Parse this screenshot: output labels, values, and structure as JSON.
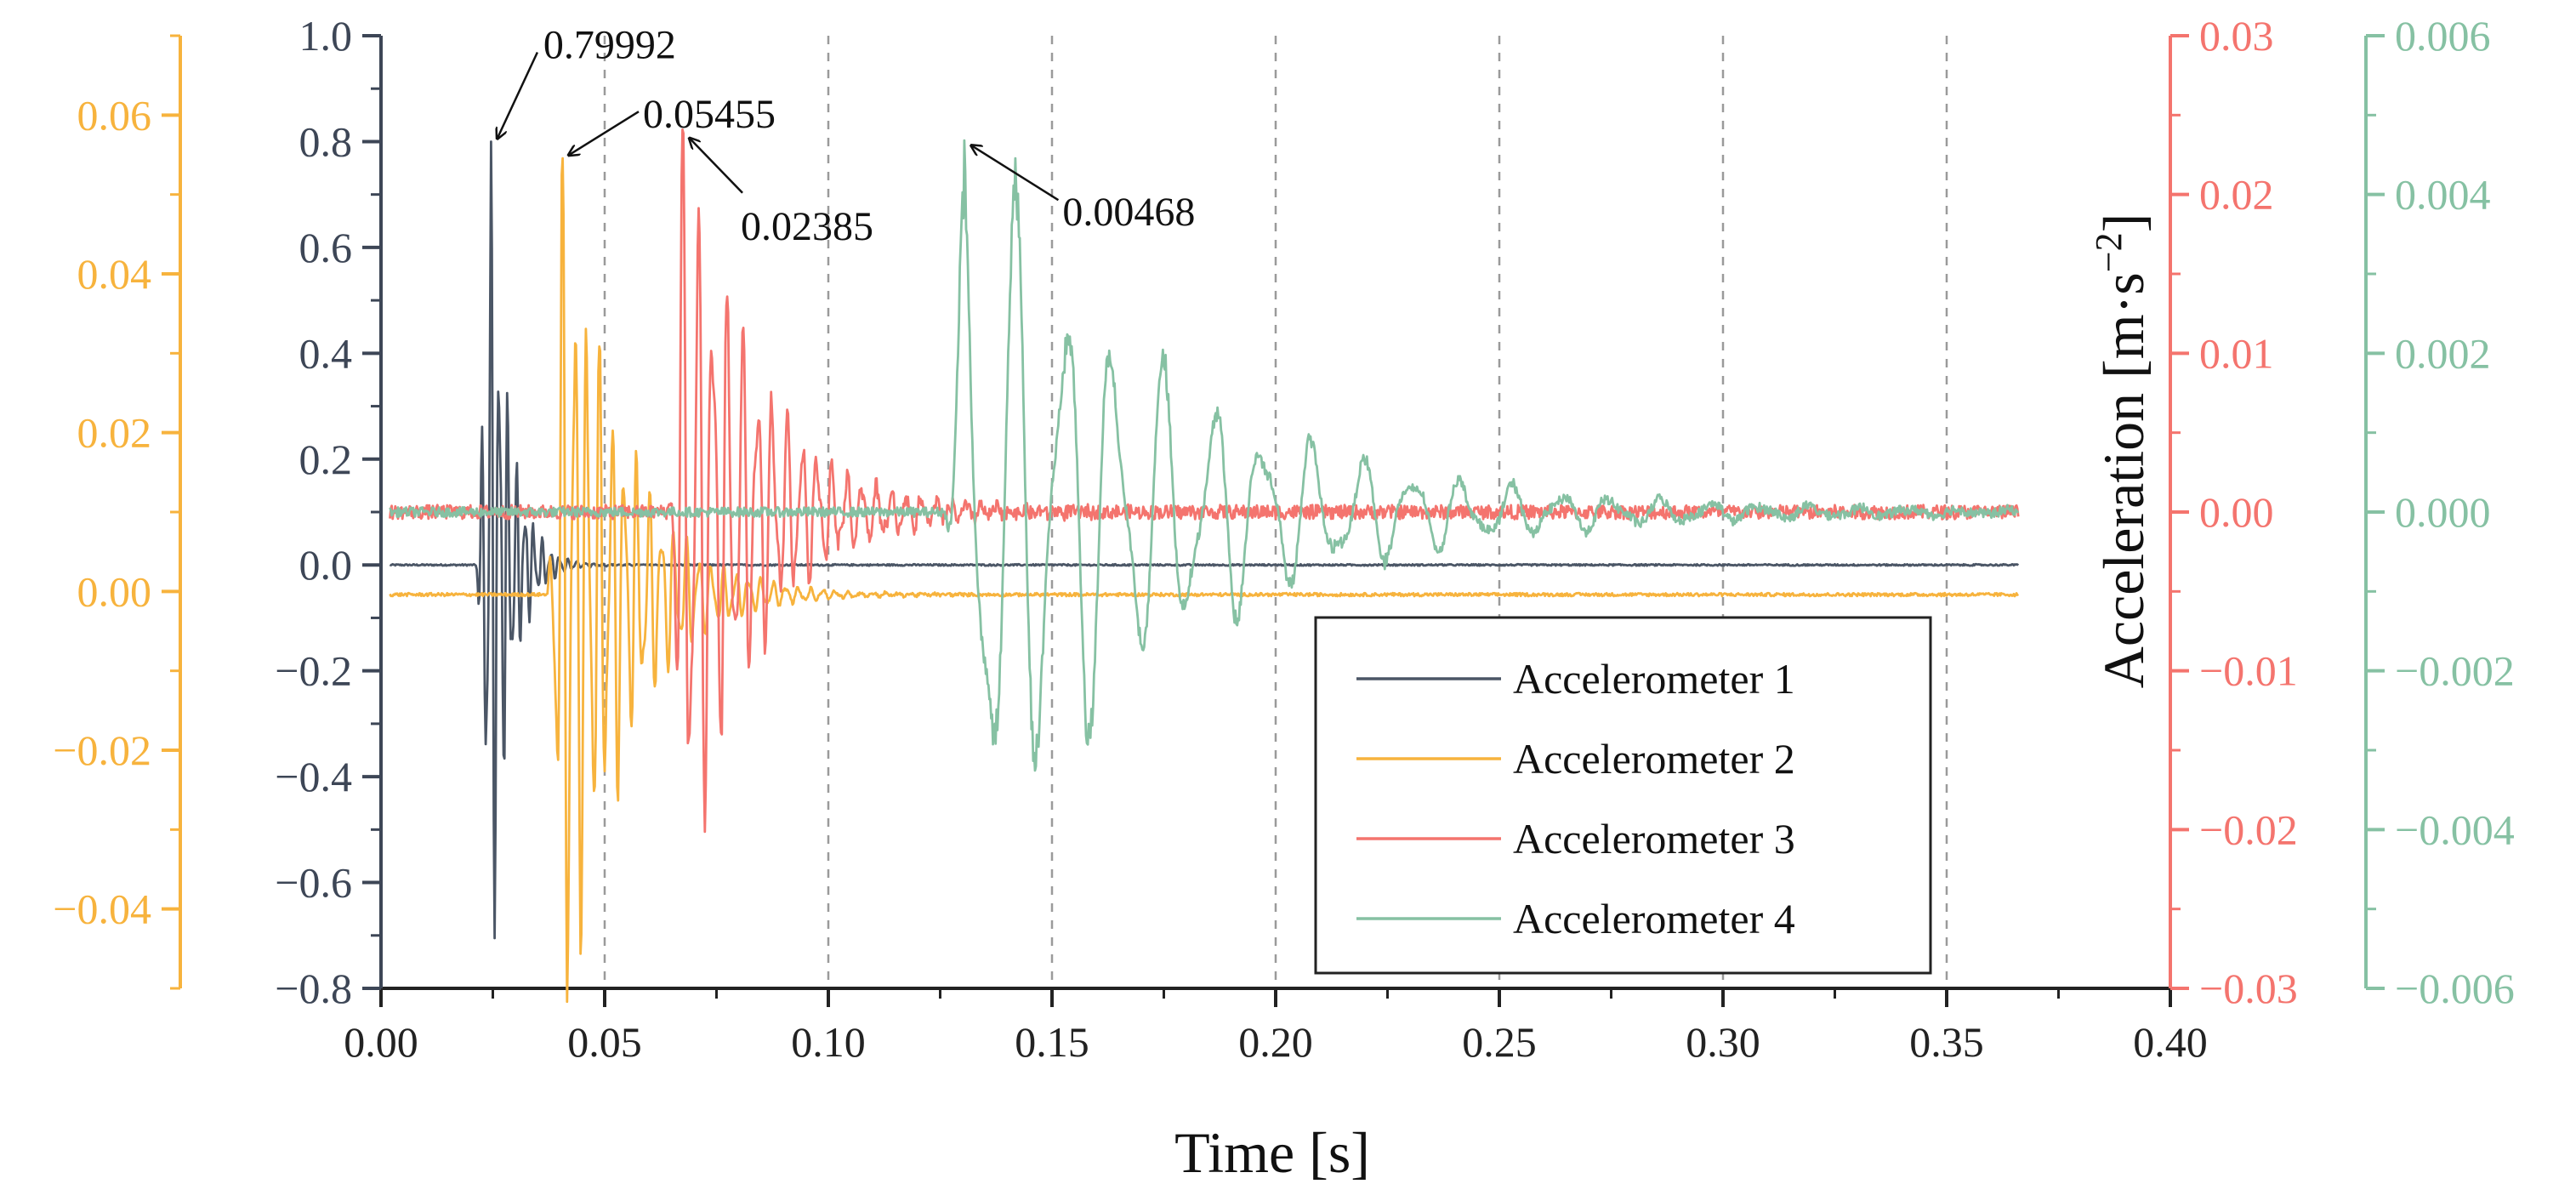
{
  "chart_data": {
    "type": "line",
    "title": "",
    "xlabel": "Time [s]",
    "ylabel_right": "Acceleration [m·s−2]",
    "xlim": [
      0,
      0.4
    ],
    "x_ticks": [
      "0.00",
      "0.05",
      "0.10",
      "0.15",
      "0.20",
      "0.25",
      "0.30",
      "0.35",
      "0.40"
    ],
    "axes": [
      {
        "id": "a1",
        "color": "#4b5666",
        "ylim": [
          -0.8,
          1.0
        ],
        "ticks": [
          "−0.8",
          "−0.6",
          "−0.4",
          "−0.2",
          "0.0",
          "0.2",
          "0.4",
          "0.6",
          "0.8",
          "1.0"
        ],
        "tick_values": [
          -0.8,
          -0.6,
          -0.4,
          -0.2,
          0,
          0.2,
          0.4,
          0.6,
          0.8,
          1.0
        ]
      },
      {
        "id": "a2",
        "color": "#f7b33d",
        "ylim": [
          -0.05,
          0.07
        ],
        "ticks": [
          "−0.04",
          "−0.02",
          "0.00",
          "0.02",
          "0.04",
          "0.06"
        ],
        "tick_values": [
          -0.04,
          -0.02,
          0,
          0.02,
          0.04,
          0.06
        ]
      },
      {
        "id": "a3",
        "color": "#f4746e",
        "ylim": [
          -0.03,
          0.03
        ],
        "ticks": [
          "−0.03",
          "−0.02",
          "−0.01",
          "0.00",
          "0.01",
          "0.02",
          "0.03"
        ],
        "tick_values": [
          -0.03,
          -0.02,
          -0.01,
          0,
          0.01,
          0.02,
          0.03
        ]
      },
      {
        "id": "a4",
        "color": "#86c1a3",
        "ylim": [
          -0.006,
          0.006
        ],
        "ticks": [
          "−0.006",
          "−0.004",
          "−0.002",
          "0.000",
          "0.002",
          "0.004",
          "0.006"
        ],
        "tick_values": [
          -0.006,
          -0.004,
          -0.002,
          0,
          0.002,
          0.004,
          0.006
        ]
      }
    ],
    "series": [
      {
        "name": "Accelerometer 1",
        "axis": "a1",
        "color": "#4b5666",
        "base": 0.0,
        "peak": 0.79992,
        "peak_time": 0.0245,
        "onset": 0.021,
        "decay": 0.004,
        "freq": 520,
        "noise": 0.003,
        "end": 0.366
      },
      {
        "name": "Accelerometer 2",
        "axis": "a2",
        "color": "#f7b33d",
        "base": -0.0004,
        "peak": 0.05455,
        "peak_time": 0.0405,
        "onset": 0.037,
        "decay": 0.013,
        "freq": 360,
        "noise": 0.0004,
        "end": 0.366
      },
      {
        "name": "Accelerometer 3",
        "axis": "a3",
        "color": "#f4746e",
        "base": 0.0,
        "peak": 0.02385,
        "peak_time": 0.0675,
        "onset": 0.064,
        "decay": 0.016,
        "freq": 300,
        "noise": 0.0009,
        "end": 0.366
      },
      {
        "name": "Accelerometer 4",
        "axis": "a4",
        "color": "#86c1a3",
        "base": 0.0,
        "peak": 0.00468,
        "peak_time": 0.1305,
        "onset": 0.126,
        "decay": 0.045,
        "freq": 90,
        "noise": 0.00012,
        "end": 0.366
      }
    ],
    "annotations": [
      {
        "text": "0.79992",
        "series": "Accelerometer 1"
      },
      {
        "text": "0.05455",
        "series": "Accelerometer 2"
      },
      {
        "text": "0.02385",
        "series": "Accelerometer 3"
      },
      {
        "text": "0.00468",
        "series": "Accelerometer 4"
      }
    ],
    "grid": "vertical-dashed",
    "legend": "bottom-right"
  }
}
